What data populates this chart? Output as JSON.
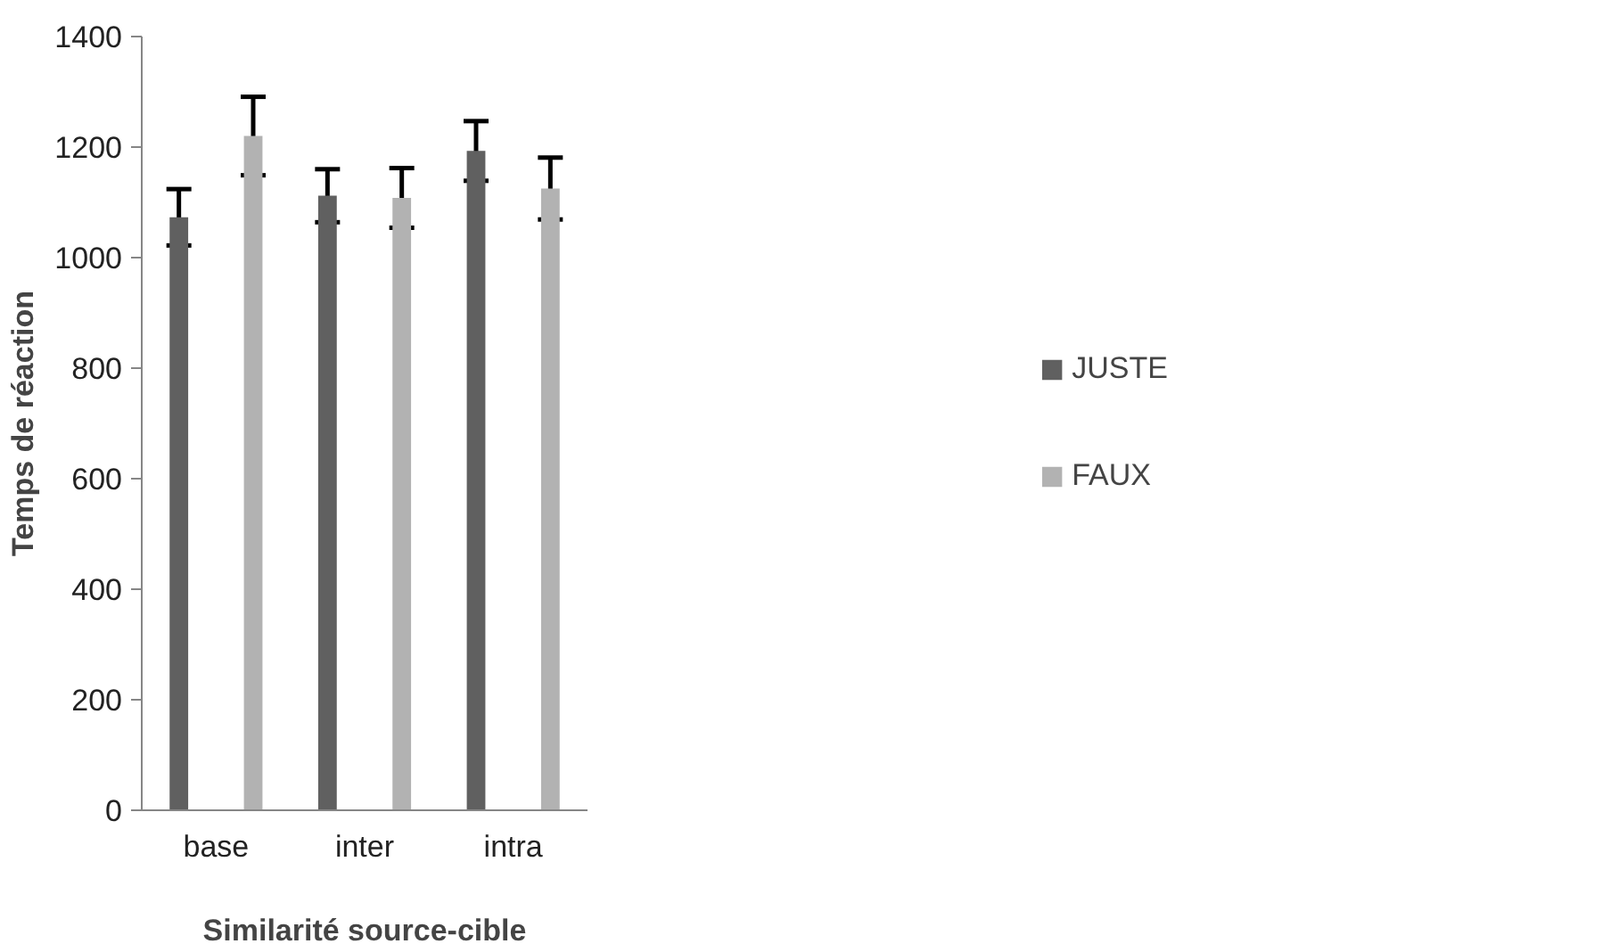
{
  "chart_data": {
    "type": "bar",
    "xlabel": "Similarité source-cible",
    "ylabel": "Temps de réaction",
    "categories": [
      "base",
      "inter",
      "intra"
    ],
    "series": [
      {
        "name": "JUSTE",
        "color": "#606060",
        "values": [
          1073,
          1112,
          1193
        ],
        "errors": [
          51,
          48,
          54
        ]
      },
      {
        "name": "FAUX",
        "color": "#b2b2b2",
        "values": [
          1220,
          1108,
          1125
        ],
        "errors": [
          71,
          54,
          56
        ]
      }
    ],
    "ylim": [
      0,
      1400
    ],
    "yticks": [
      0,
      200,
      400,
      600,
      800,
      1000,
      1200,
      1400
    ],
    "grid": false,
    "legend": "right"
  }
}
